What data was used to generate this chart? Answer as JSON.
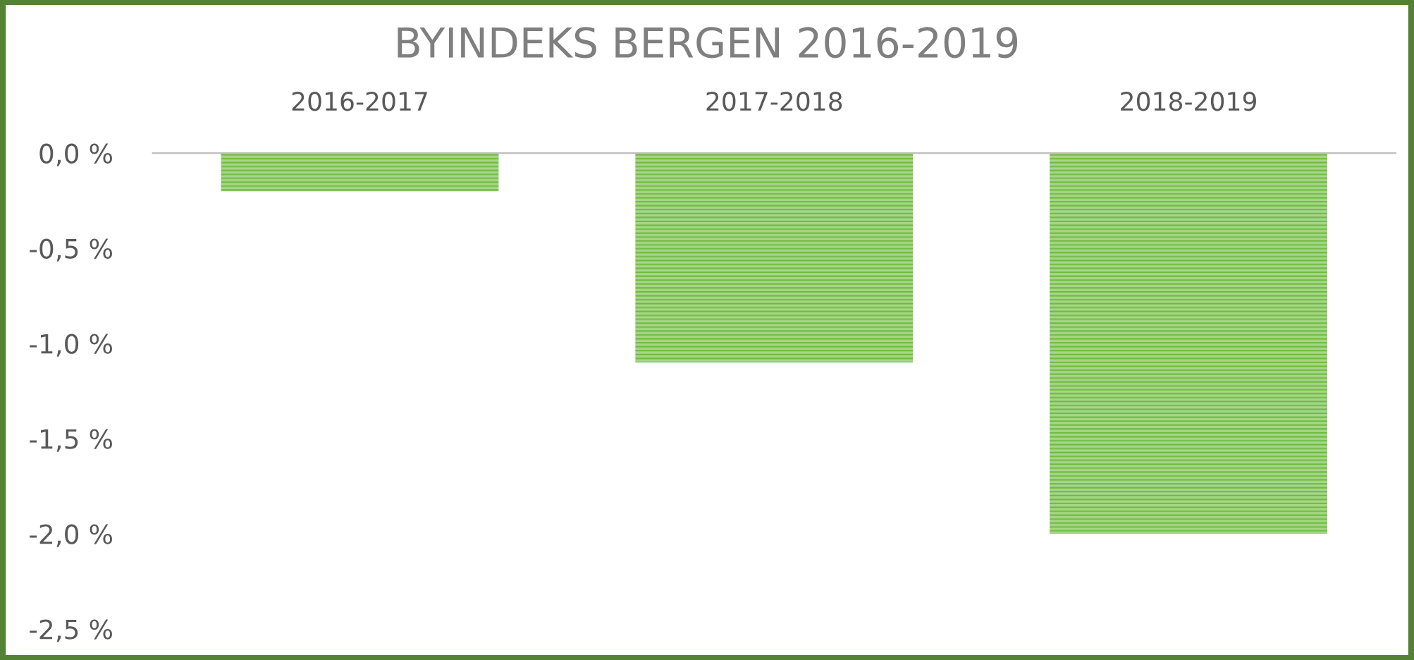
{
  "chart_data": {
    "type": "bar",
    "title": "BYINDEKS BERGEN 2016-2019",
    "categories": [
      "2016-2017",
      "2017-2018",
      "2018-2019"
    ],
    "values": [
      -0.2,
      -1.1,
      -2.0
    ],
    "color": "#6dbb3c",
    "ylim": [
      -2.5,
      0
    ],
    "yticks": [
      {
        "value": 0,
        "label": "0,0 %"
      },
      {
        "value": -0.5,
        "label": "-0,5 %"
      },
      {
        "value": -1.0,
        "label": "-1,0 %"
      },
      {
        "value": -1.5,
        "label": "-1,5 %"
      },
      {
        "value": -2.0,
        "label": "-2,0 %"
      },
      {
        "value": -2.5,
        "label": "-2,5 %"
      }
    ],
    "grid": false,
    "legend": false
  }
}
